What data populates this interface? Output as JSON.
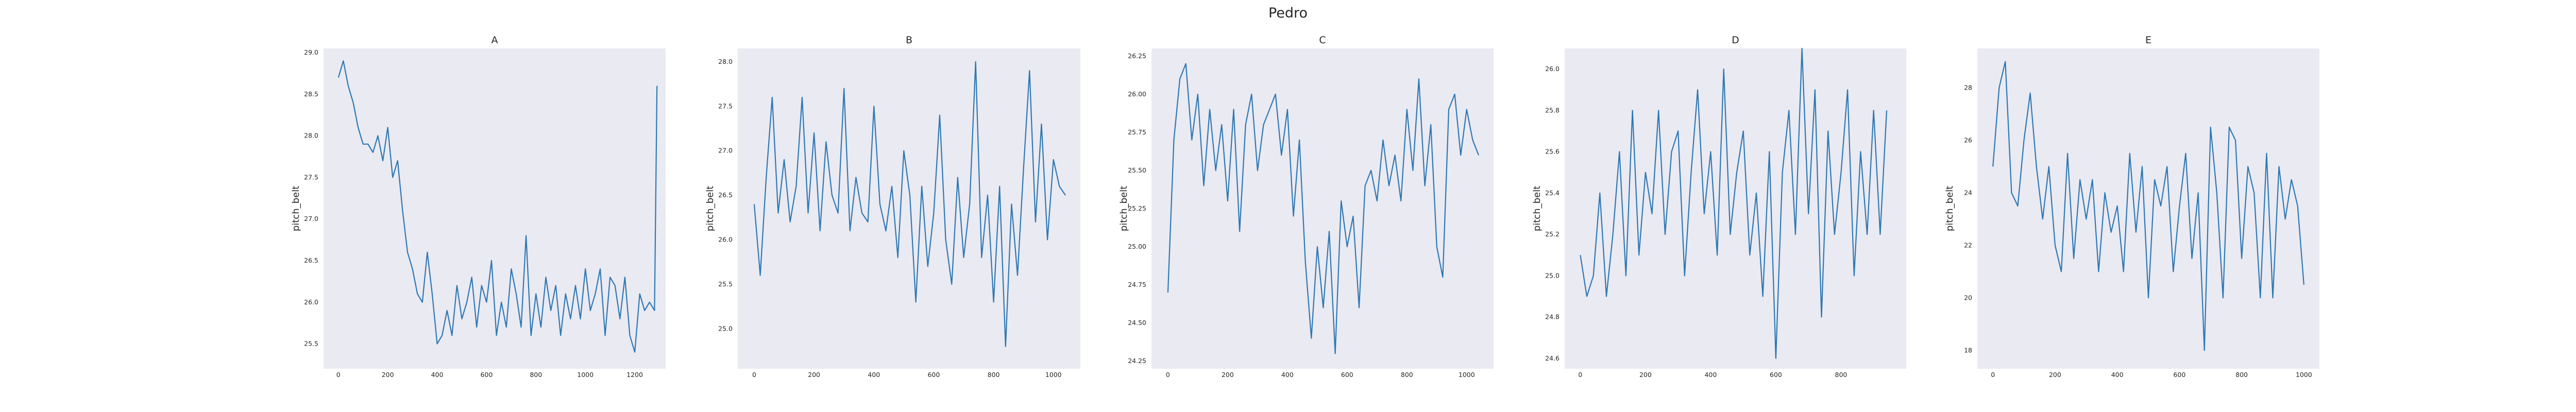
{
  "figure_title": "Pedro",
  "chart_data": [
    {
      "type": "line",
      "title": "A",
      "xlabel": "",
      "ylabel": "pitch_belt",
      "xlim": [
        -60,
        1325
      ],
      "ylim": [
        25.2,
        29.05
      ],
      "xticks": [
        0,
        200,
        400,
        600,
        800,
        1000,
        1200
      ],
      "yticks": [
        25.5,
        26.0,
        26.5,
        27.0,
        27.5,
        28.0,
        28.5,
        29.0
      ],
      "ytick_labels": [
        "25.5",
        "26.0",
        "26.5",
        "27.0",
        "27.5",
        "28.0",
        "28.5",
        "29.0"
      ],
      "grid": false,
      "series": [
        {
          "color": "#2e78b4",
          "x": [
            0,
            20,
            40,
            60,
            80,
            100,
            120,
            140,
            160,
            180,
            200,
            220,
            240,
            260,
            280,
            300,
            320,
            340,
            360,
            380,
            400,
            420,
            440,
            460,
            480,
            500,
            520,
            540,
            560,
            580,
            600,
            620,
            640,
            660,
            680,
            700,
            720,
            740,
            760,
            780,
            800,
            820,
            840,
            860,
            880,
            900,
            920,
            940,
            960,
            980,
            1000,
            1020,
            1040,
            1060,
            1080,
            1100,
            1120,
            1140,
            1160,
            1180,
            1200,
            1220,
            1240,
            1260,
            1280,
            1290
          ],
          "y": [
            28.7,
            28.9,
            28.6,
            28.4,
            28.1,
            27.9,
            27.9,
            27.8,
            28.0,
            27.7,
            28.1,
            27.5,
            27.7,
            27.1,
            26.6,
            26.4,
            26.1,
            26.0,
            26.6,
            26.1,
            25.5,
            25.6,
            25.9,
            25.6,
            26.2,
            25.8,
            26.0,
            26.3,
            25.7,
            26.2,
            26.0,
            26.5,
            25.6,
            26.0,
            25.7,
            26.4,
            26.1,
            25.7,
            26.8,
            25.6,
            26.1,
            25.7,
            26.3,
            25.9,
            26.2,
            25.6,
            26.1,
            25.8,
            26.2,
            25.8,
            26.4,
            25.9,
            26.1,
            26.4,
            25.6,
            26.3,
            26.2,
            25.8,
            26.3,
            25.6,
            25.4,
            26.1,
            25.9,
            26.0,
            25.9,
            28.6
          ]
        }
      ]
    },
    {
      "type": "line",
      "title": "B",
      "xlabel": "",
      "ylabel": "pitch_belt",
      "xlim": [
        -55,
        1090
      ],
      "ylim": [
        24.55,
        28.15
      ],
      "xticks": [
        0,
        200,
        400,
        600,
        800,
        1000
      ],
      "yticks": [
        25.0,
        25.5,
        26.0,
        26.5,
        27.0,
        27.5,
        28.0
      ],
      "ytick_labels": [
        "25.0",
        "25.5",
        "26.0",
        "26.5",
        "27.0",
        "27.5",
        "28.0"
      ],
      "grid": false,
      "series": [
        {
          "color": "#2e78b4",
          "x": [
            0,
            20,
            40,
            60,
            80,
            100,
            120,
            140,
            160,
            180,
            200,
            220,
            240,
            260,
            280,
            300,
            320,
            340,
            360,
            380,
            400,
            420,
            440,
            460,
            480,
            500,
            520,
            540,
            560,
            580,
            600,
            620,
            640,
            660,
            680,
            700,
            720,
            740,
            760,
            780,
            800,
            820,
            840,
            860,
            880,
            900,
            920,
            940,
            960,
            980,
            1000,
            1020,
            1040
          ],
          "y": [
            26.4,
            25.6,
            26.7,
            27.6,
            26.3,
            26.9,
            26.2,
            26.6,
            27.6,
            26.3,
            27.2,
            26.1,
            27.1,
            26.5,
            26.3,
            27.7,
            26.1,
            26.7,
            26.3,
            26.2,
            27.5,
            26.4,
            26.1,
            26.6,
            25.8,
            27.0,
            26.5,
            25.3,
            26.6,
            25.7,
            26.3,
            27.4,
            26.0,
            25.5,
            26.7,
            25.8,
            26.4,
            28.0,
            25.8,
            26.5,
            25.3,
            26.6,
            24.8,
            26.4,
            25.6,
            26.8,
            27.9,
            26.2,
            27.3,
            26.0,
            26.9,
            26.6,
            26.5
          ]
        }
      ]
    },
    {
      "type": "line",
      "title": "C",
      "xlabel": "",
      "ylabel": "pitch_belt",
      "xlim": [
        -55,
        1090
      ],
      "ylim": [
        24.2,
        26.3
      ],
      "xticks": [
        0,
        200,
        400,
        600,
        800,
        1000
      ],
      "yticks": [
        24.25,
        24.5,
        24.75,
        25.0,
        25.25,
        25.5,
        25.75,
        26.0,
        26.25
      ],
      "ytick_labels": [
        "24.25",
        "24.50",
        "24.75",
        "25.00",
        "25.25",
        "25.50",
        "25.75",
        "26.00",
        "26.25"
      ],
      "grid": false,
      "series": [
        {
          "color": "#2e78b4",
          "x": [
            0,
            20,
            40,
            60,
            80,
            100,
            120,
            140,
            160,
            180,
            200,
            220,
            240,
            260,
            280,
            300,
            320,
            340,
            360,
            380,
            400,
            420,
            440,
            460,
            480,
            500,
            520,
            540,
            560,
            580,
            600,
            620,
            640,
            660,
            680,
            700,
            720,
            740,
            760,
            780,
            800,
            820,
            840,
            860,
            880,
            900,
            920,
            940,
            960,
            980,
            1000,
            1020,
            1040
          ],
          "y": [
            24.7,
            25.7,
            26.1,
            26.2,
            25.7,
            26.0,
            25.4,
            25.9,
            25.5,
            25.8,
            25.3,
            25.9,
            25.1,
            25.8,
            26.0,
            25.5,
            25.8,
            25.9,
            26.0,
            25.6,
            25.9,
            25.2,
            25.7,
            24.9,
            24.4,
            25.0,
            24.6,
            25.1,
            24.3,
            25.3,
            25.0,
            25.2,
            24.6,
            25.4,
            25.5,
            25.3,
            25.7,
            25.4,
            25.6,
            25.3,
            25.9,
            25.5,
            26.1,
            25.4,
            25.8,
            25.0,
            24.8,
            25.9,
            26.0,
            25.6,
            25.9,
            25.7,
            25.6
          ]
        }
      ]
    },
    {
      "type": "line",
      "title": "D",
      "xlabel": "",
      "ylabel": "pitch_belt",
      "xlim": [
        -48,
        1000
      ],
      "ylim": [
        24.55,
        26.1
      ],
      "xticks": [
        0,
        200,
        400,
        600,
        800
      ],
      "yticks": [
        24.6,
        24.8,
        25.0,
        25.2,
        25.4,
        25.6,
        25.8,
        26.0
      ],
      "ytick_labels": [
        "24.6",
        "24.8",
        "25.0",
        "25.2",
        "25.4",
        "25.6",
        "25.8",
        "26.0"
      ],
      "grid": false,
      "series": [
        {
          "color": "#2e78b4",
          "x": [
            0,
            20,
            40,
            60,
            80,
            100,
            120,
            140,
            160,
            180,
            200,
            220,
            240,
            260,
            280,
            300,
            320,
            340,
            360,
            380,
            400,
            420,
            440,
            460,
            480,
            500,
            520,
            540,
            560,
            580,
            600,
            620,
            640,
            660,
            680,
            700,
            720,
            740,
            760,
            780,
            800,
            820,
            840,
            860,
            880,
            900,
            920,
            940
          ],
          "y": [
            25.1,
            24.9,
            25.0,
            25.4,
            24.9,
            25.2,
            25.6,
            25.0,
            25.8,
            25.1,
            25.5,
            25.3,
            25.8,
            25.2,
            25.6,
            25.7,
            25.0,
            25.5,
            25.9,
            25.3,
            25.6,
            25.1,
            26.0,
            25.2,
            25.5,
            25.7,
            25.1,
            25.4,
            24.9,
            25.6,
            24.6,
            25.5,
            25.8,
            25.2,
            26.1,
            25.3,
            25.9,
            24.8,
            25.7,
            25.2,
            25.5,
            25.9,
            25.0,
            25.6,
            25.2,
            25.8,
            25.2,
            25.8
          ]
        }
      ]
    },
    {
      "type": "line",
      "title": "E",
      "xlabel": "",
      "ylabel": "pitch_belt",
      "xlim": [
        -50,
        1050
      ],
      "ylim": [
        17.3,
        29.5
      ],
      "xticks": [
        0,
        200,
        400,
        600,
        800,
        1000
      ],
      "yticks": [
        18,
        20,
        22,
        24,
        26,
        28
      ],
      "ytick_labels": [
        "18",
        "20",
        "22",
        "24",
        "26",
        "28"
      ],
      "grid": false,
      "series": [
        {
          "color": "#2e78b4",
          "x": [
            0,
            20,
            40,
            60,
            80,
            100,
            120,
            140,
            160,
            180,
            200,
            220,
            240,
            260,
            280,
            300,
            320,
            340,
            360,
            380,
            400,
            420,
            440,
            460,
            480,
            500,
            520,
            540,
            560,
            580,
            600,
            620,
            640,
            660,
            680,
            700,
            720,
            740,
            760,
            780,
            800,
            820,
            840,
            860,
            880,
            900,
            920,
            940,
            960,
            980,
            1000
          ],
          "y": [
            25.0,
            28.0,
            29.0,
            24.0,
            23.5,
            26.0,
            27.8,
            25.0,
            23.0,
            25.0,
            22.0,
            21.0,
            25.5,
            21.5,
            24.5,
            23.0,
            24.5,
            21.0,
            24.0,
            22.5,
            23.5,
            21.0,
            25.5,
            22.5,
            25.0,
            20.0,
            24.5,
            23.5,
            25.0,
            21.0,
            23.5,
            25.5,
            21.5,
            24.0,
            18.0,
            26.5,
            24.0,
            20.0,
            26.5,
            26.0,
            21.5,
            25.0,
            24.0,
            20.0,
            25.5,
            20.0,
            25.0,
            23.0,
            24.5,
            23.5,
            20.5
          ]
        }
      ]
    }
  ]
}
